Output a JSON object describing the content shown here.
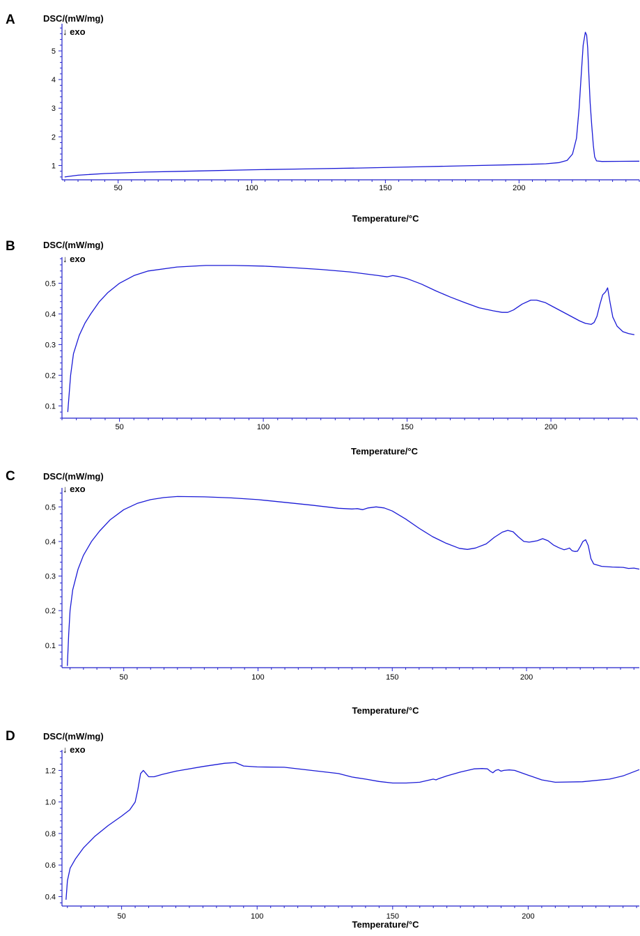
{
  "colors": {
    "axis": "#2222cc",
    "curve": "#1a1ad6"
  },
  "chart_data": [
    {
      "type": "line",
      "panel_label": "A",
      "ylabel": "DSC/(mW/mg)",
      "ylabel_sub": "↓ exo",
      "xlabel": "Temperature/°C",
      "xlim": [
        29,
        245
      ],
      "ylim": [
        0.5,
        5.95
      ],
      "xticks": [
        50,
        100,
        150,
        200
      ],
      "yticks": [
        1,
        2,
        3,
        4,
        5
      ],
      "grid": false,
      "series": [
        {
          "x": [
            30,
            35,
            45,
            60,
            80,
            100,
            120,
            140,
            160,
            180,
            200,
            210,
            215,
            218,
            220,
            221.5,
            222.5,
            223.3,
            224,
            224.8,
            225.3,
            225.7,
            226.1,
            226.6,
            227.2,
            227.8,
            228.3,
            229,
            231,
            245
          ],
          "y": [
            0.6,
            0.66,
            0.72,
            0.77,
            0.81,
            0.85,
            0.88,
            0.91,
            0.95,
            0.99,
            1.03,
            1.06,
            1.1,
            1.18,
            1.4,
            1.95,
            3.0,
            4.2,
            5.2,
            5.65,
            5.55,
            5.1,
            4.2,
            3.2,
            2.4,
            1.7,
            1.3,
            1.16,
            1.14,
            1.15
          ]
        }
      ]
    },
    {
      "type": "line",
      "panel_label": "B",
      "ylabel": "DSC/(mW/mg)",
      "ylabel_sub": "↓ exo",
      "xlabel": "Temperature/°C",
      "xlim": [
        30,
        230
      ],
      "ylim": [
        0.06,
        0.585
      ],
      "xticks": [
        50,
        100,
        150,
        200
      ],
      "yticks": [
        0.1,
        0.2,
        0.3,
        0.4,
        0.5
      ],
      "grid": false,
      "series": [
        {
          "x": [
            32,
            33,
            34,
            36,
            38,
            40,
            43,
            46,
            50,
            55,
            60,
            70,
            80,
            90,
            100,
            110,
            120,
            130,
            140,
            143,
            145,
            147,
            150,
            155,
            160,
            165,
            170,
            175,
            180,
            183,
            185,
            187,
            190,
            193,
            195,
            198,
            200,
            205,
            210,
            212,
            214,
            215,
            216,
            217,
            218,
            219,
            219.7,
            220.5,
            221.5,
            223,
            225,
            227,
            229
          ],
          "y": [
            0.08,
            0.2,
            0.27,
            0.33,
            0.37,
            0.4,
            0.44,
            0.47,
            0.5,
            0.525,
            0.54,
            0.553,
            0.558,
            0.558,
            0.556,
            0.551,
            0.545,
            0.537,
            0.525,
            0.521,
            0.525,
            0.522,
            0.515,
            0.497,
            0.475,
            0.455,
            0.437,
            0.42,
            0.41,
            0.405,
            0.405,
            0.413,
            0.432,
            0.445,
            0.445,
            0.437,
            0.427,
            0.402,
            0.377,
            0.369,
            0.366,
            0.372,
            0.392,
            0.43,
            0.462,
            0.472,
            0.485,
            0.44,
            0.39,
            0.36,
            0.342,
            0.336,
            0.332
          ]
        }
      ]
    },
    {
      "type": "line",
      "panel_label": "C",
      "ylabel": "DSC/(mW/mg)",
      "ylabel_sub": "↓ exo",
      "xlabel": "Temperature/°C",
      "xlim": [
        27,
        242
      ],
      "ylim": [
        0.035,
        0.555
      ],
      "xticks": [
        50,
        100,
        150,
        200
      ],
      "yticks": [
        0.1,
        0.2,
        0.3,
        0.4,
        0.5
      ],
      "grid": false,
      "series": [
        {
          "x": [
            29,
            29.5,
            30,
            31,
            33,
            35,
            38,
            41,
            45,
            50,
            55,
            60,
            65,
            70,
            80,
            90,
            100,
            110,
            120,
            130,
            135,
            137,
            139,
            141,
            144,
            147,
            150,
            155,
            160,
            165,
            170,
            175,
            178,
            181,
            185,
            188,
            191,
            193,
            195,
            197,
            199,
            201,
            204,
            206,
            208,
            210,
            212,
            214,
            215,
            216,
            217,
            218,
            219,
            220,
            221,
            222,
            223,
            224,
            225,
            228,
            232,
            236,
            238,
            240,
            242
          ],
          "y": [
            0.04,
            0.13,
            0.2,
            0.26,
            0.32,
            0.36,
            0.4,
            0.43,
            0.463,
            0.492,
            0.51,
            0.521,
            0.527,
            0.53,
            0.529,
            0.526,
            0.521,
            0.513,
            0.505,
            0.496,
            0.494,
            0.495,
            0.492,
            0.497,
            0.5,
            0.497,
            0.488,
            0.465,
            0.438,
            0.414,
            0.395,
            0.38,
            0.377,
            0.381,
            0.393,
            0.412,
            0.427,
            0.432,
            0.428,
            0.413,
            0.4,
            0.398,
            0.402,
            0.408,
            0.402,
            0.39,
            0.382,
            0.376,
            0.378,
            0.381,
            0.373,
            0.371,
            0.372,
            0.385,
            0.4,
            0.405,
            0.388,
            0.35,
            0.335,
            0.328,
            0.326,
            0.325,
            0.322,
            0.323,
            0.32
          ]
        }
      ]
    },
    {
      "type": "line",
      "panel_label": "D",
      "ylabel": "DSC/(mW/mg)",
      "ylabel_sub": "↓ exo",
      "xlabel": "Temperature/°C",
      "xlim": [
        28,
        241
      ],
      "ylim": [
        0.34,
        1.33
      ],
      "xticks": [
        50,
        100,
        150,
        200
      ],
      "yticks": [
        0.4,
        0.6,
        0.8,
        1.0,
        1.2
      ],
      "grid": false,
      "series": [
        {
          "x": [
            29.5,
            30,
            31,
            33,
            36,
            40,
            45,
            50,
            53,
            55,
            56,
            57,
            58,
            59,
            60,
            62,
            65,
            70,
            80,
            88,
            92,
            95,
            100,
            110,
            120,
            130,
            135,
            140,
            145,
            150,
            155,
            160,
            165,
            166,
            167,
            170,
            175,
            180,
            183,
            185,
            186,
            187,
            188,
            189,
            190,
            191,
            193,
            195,
            200,
            205,
            210,
            220,
            230,
            235,
            241
          ],
          "y": [
            0.38,
            0.5,
            0.58,
            0.64,
            0.71,
            0.78,
            0.85,
            0.91,
            0.95,
            1.0,
            1.08,
            1.18,
            1.2,
            1.18,
            1.16,
            1.16,
            1.175,
            1.195,
            1.225,
            1.245,
            1.25,
            1.228,
            1.222,
            1.22,
            1.2,
            1.18,
            1.158,
            1.145,
            1.13,
            1.12,
            1.12,
            1.125,
            1.145,
            1.14,
            1.148,
            1.165,
            1.19,
            1.21,
            1.212,
            1.21,
            1.195,
            1.185,
            1.2,
            1.205,
            1.195,
            1.2,
            1.203,
            1.2,
            1.17,
            1.14,
            1.125,
            1.128,
            1.145,
            1.165,
            1.205
          ]
        }
      ]
    }
  ]
}
